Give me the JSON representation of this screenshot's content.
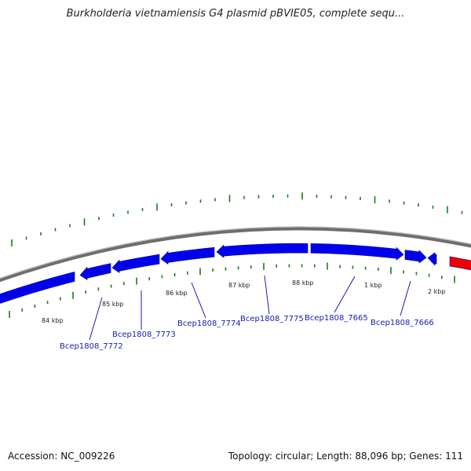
{
  "title": "Burkholderia vietnamiensis G4 plasmid pBVIE05, complete sequ...",
  "accession_label": "Accession:",
  "accession": "NC_009226",
  "topology_label": "Topology:",
  "topology": "circular",
  "length_label": "Length:",
  "length": "88,096 bp",
  "genes_label": "Genes:",
  "genes": "111",
  "colors": {
    "backbone": "#888888",
    "gene_forward": "#0000ee",
    "gene_highlight": "#ee0000",
    "tick": "#1f7a1f",
    "gene_label": "#1a1ab4"
  },
  "kbp_labels": [
    "84 kbp",
    "85 kbp",
    "86 kbp",
    "87 kbp",
    "88 kbp",
    "1 kbp",
    "2 kbp"
  ],
  "genes_list": [
    {
      "name": "Bcep1808_7772"
    },
    {
      "name": "Bcep1808_7773"
    },
    {
      "name": "Bcep1808_7774"
    },
    {
      "name": "Bcep1808_7775"
    },
    {
      "name": "Bcep1808_7665"
    },
    {
      "name": "Bcep1808_7666"
    }
  ]
}
